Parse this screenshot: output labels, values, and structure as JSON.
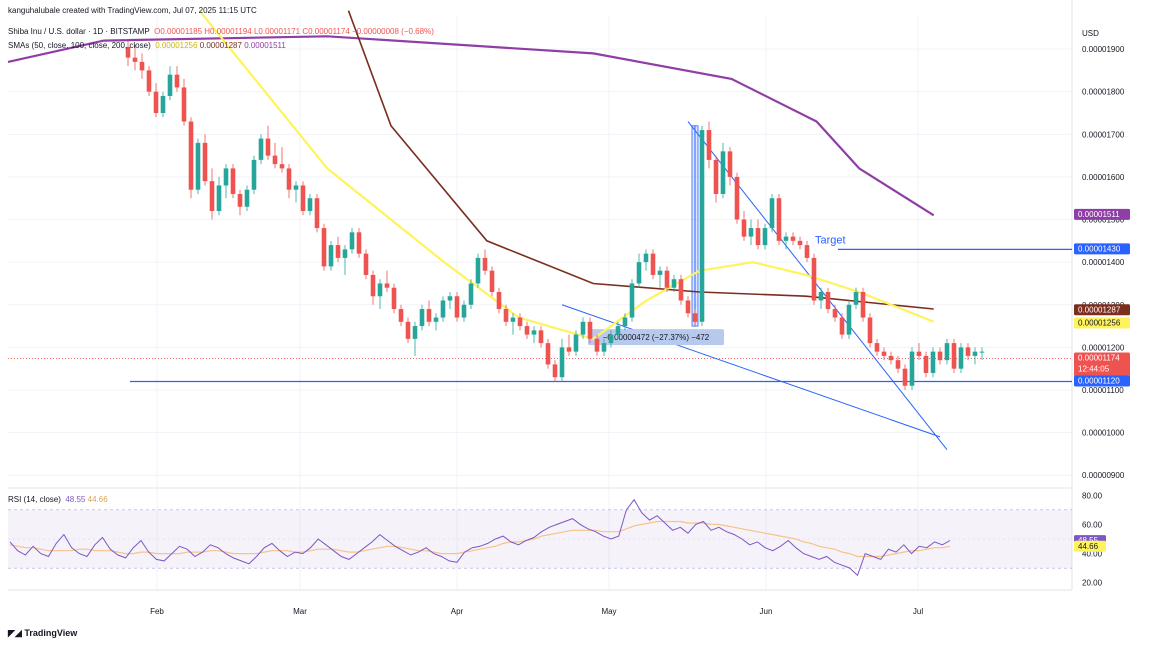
{
  "header": {
    "credit": "kanguhalubale created with TradingView.com, Jul 07, 2025 11:15 UTC",
    "symbol_line": "Shiba Inu / U.S. dollar · 1D · BITSTAMP",
    "ohlc": {
      "o": "O0.00001185",
      "h": "H0.00001194",
      "l": "L0.00001171",
      "c": "C0.00001174",
      "chg": "−0.00000008 (−0.68%)"
    },
    "sma_label": "SMAs (50, close, 100, close, 200, close)",
    "sma_values": [
      "0.00001256",
      "0.00001287",
      "0.00001511"
    ]
  },
  "currency": "USD",
  "footer": "TradingView",
  "colors": {
    "up": "#26a69a",
    "down": "#ef5350",
    "sma50": "#fff35c",
    "sma100": "#7b2d1e",
    "sma200": "#8e3ea5",
    "trendline": "#2962ff",
    "support": "#2962ff",
    "rsi": "#7e57c2",
    "rsi_ma": "#f5c48a"
  },
  "chart_data": [
    {
      "type": "candlestick",
      "title": "Shiba Inu / U.S. dollar · 1D · BITSTAMP",
      "x_ticks": [
        "Feb",
        "Mar",
        "Apr",
        "May",
        "Jun",
        "Jul"
      ],
      "y_ticks": [
        "0.00001900",
        "0.00001800",
        "0.00001700",
        "0.00001600",
        "0.00001500",
        "0.00001400",
        "0.00001300",
        "0.00001200",
        "0.00001100",
        "0.00001000",
        "0.00000900"
      ],
      "ylim": [
        8.7e-06,
        1.98e-05
      ],
      "price_scale_tags": [
        {
          "label": "0.00001511",
          "color": "#8e3ea5"
        },
        {
          "label": "0.00001430",
          "color": "#2962ff"
        },
        {
          "label": "0.00001287",
          "color": "#7b2d1e"
        },
        {
          "label": "0.00001256",
          "color": "#fff35c",
          "text": "#131722"
        },
        {
          "label": "0.00001174",
          "sub": "12:44:05",
          "color": "#ef5350"
        },
        {
          "label": "0.00001120",
          "color": "#2962ff"
        }
      ],
      "candles": [
        [
          1.905,
          1.92,
          1.86,
          1.88
        ],
        [
          1.88,
          1.91,
          1.85,
          1.87
        ],
        [
          1.87,
          1.89,
          1.83,
          1.85
        ],
        [
          1.85,
          1.86,
          1.79,
          1.8
        ],
        [
          1.8,
          1.82,
          1.74,
          1.75
        ],
        [
          1.75,
          1.8,
          1.74,
          1.79
        ],
        [
          1.79,
          1.86,
          1.78,
          1.84
        ],
        [
          1.84,
          1.86,
          1.8,
          1.81
        ],
        [
          1.81,
          1.83,
          1.72,
          1.73
        ],
        [
          1.73,
          1.74,
          1.55,
          1.57
        ],
        [
          1.57,
          1.69,
          1.56,
          1.68
        ],
        [
          1.68,
          1.7,
          1.58,
          1.59
        ],
        [
          1.59,
          1.62,
          1.5,
          1.52
        ],
        [
          1.52,
          1.6,
          1.51,
          1.58
        ],
        [
          1.58,
          1.63,
          1.55,
          1.62
        ],
        [
          1.62,
          1.63,
          1.55,
          1.56
        ],
        [
          1.56,
          1.57,
          1.51,
          1.53
        ],
        [
          1.53,
          1.58,
          1.52,
          1.57
        ],
        [
          1.57,
          1.65,
          1.56,
          1.64
        ],
        [
          1.64,
          1.7,
          1.63,
          1.69
        ],
        [
          1.69,
          1.72,
          1.64,
          1.65
        ],
        [
          1.65,
          1.68,
          1.62,
          1.63
        ],
        [
          1.63,
          1.67,
          1.61,
          1.62
        ],
        [
          1.62,
          1.63,
          1.55,
          1.57
        ],
        [
          1.57,
          1.59,
          1.54,
          1.58
        ],
        [
          1.58,
          1.59,
          1.51,
          1.52
        ],
        [
          1.52,
          1.56,
          1.51,
          1.55
        ],
        [
          1.55,
          1.56,
          1.47,
          1.48
        ],
        [
          1.48,
          1.49,
          1.38,
          1.39
        ],
        [
          1.39,
          1.45,
          1.38,
          1.44
        ],
        [
          1.44,
          1.46,
          1.4,
          1.41
        ],
        [
          1.41,
          1.44,
          1.37,
          1.43
        ],
        [
          1.43,
          1.48,
          1.42,
          1.47
        ],
        [
          1.47,
          1.48,
          1.41,
          1.42
        ],
        [
          1.42,
          1.43,
          1.36,
          1.37
        ],
        [
          1.37,
          1.38,
          1.3,
          1.32
        ],
        [
          1.32,
          1.36,
          1.29,
          1.35
        ],
        [
          1.35,
          1.38,
          1.33,
          1.34
        ],
        [
          1.34,
          1.35,
          1.28,
          1.29
        ],
        [
          1.29,
          1.3,
          1.25,
          1.26
        ],
        [
          1.26,
          1.27,
          1.21,
          1.22
        ],
        [
          1.22,
          1.26,
          1.18,
          1.25
        ],
        [
          1.25,
          1.3,
          1.24,
          1.29
        ],
        [
          1.29,
          1.31,
          1.25,
          1.26
        ],
        [
          1.26,
          1.28,
          1.24,
          1.27
        ],
        [
          1.27,
          1.32,
          1.26,
          1.31
        ],
        [
          1.31,
          1.33,
          1.29,
          1.32
        ],
        [
          1.32,
          1.33,
          1.26,
          1.27
        ],
        [
          1.27,
          1.31,
          1.26,
          1.3
        ],
        [
          1.3,
          1.36,
          1.29,
          1.35
        ],
        [
          1.35,
          1.42,
          1.34,
          1.41
        ],
        [
          1.41,
          1.43,
          1.37,
          1.38
        ],
        [
          1.38,
          1.39,
          1.32,
          1.33
        ],
        [
          1.33,
          1.34,
          1.28,
          1.29
        ],
        [
          1.29,
          1.3,
          1.25,
          1.26
        ],
        [
          1.26,
          1.28,
          1.23,
          1.27
        ],
        [
          1.27,
          1.28,
          1.24,
          1.25
        ],
        [
          1.25,
          1.26,
          1.22,
          1.23
        ],
        [
          1.23,
          1.25,
          1.21,
          1.24
        ],
        [
          1.24,
          1.25,
          1.2,
          1.21
        ],
        [
          1.21,
          1.22,
          1.15,
          1.16
        ],
        [
          1.16,
          1.17,
          1.12,
          1.13
        ],
        [
          1.13,
          1.22,
          1.12,
          1.2
        ],
        [
          1.2,
          1.23,
          1.18,
          1.19
        ],
        [
          1.19,
          1.24,
          1.18,
          1.23
        ],
        [
          1.23,
          1.27,
          1.22,
          1.26
        ],
        [
          1.26,
          1.27,
          1.21,
          1.22
        ],
        [
          1.22,
          1.23,
          1.18,
          1.19
        ],
        [
          1.19,
          1.22,
          1.18,
          1.21
        ],
        [
          1.21,
          1.24,
          1.2,
          1.23
        ],
        [
          1.23,
          1.26,
          1.22,
          1.25
        ],
        [
          1.25,
          1.28,
          1.24,
          1.27
        ],
        [
          1.27,
          1.36,
          1.26,
          1.35
        ],
        [
          1.35,
          1.42,
          1.34,
          1.4
        ],
        [
          1.4,
          1.43,
          1.38,
          1.42
        ],
        [
          1.42,
          1.43,
          1.36,
          1.37
        ],
        [
          1.37,
          1.39,
          1.34,
          1.38
        ],
        [
          1.38,
          1.39,
          1.33,
          1.34
        ],
        [
          1.34,
          1.37,
          1.33,
          1.36
        ],
        [
          1.36,
          1.37,
          1.3,
          1.31
        ],
        [
          1.31,
          1.32,
          1.27,
          1.28
        ],
        [
          1.28,
          1.29,
          1.25,
          1.26
        ],
        [
          1.26,
          1.72,
          1.25,
          1.71
        ],
        [
          1.71,
          1.73,
          1.62,
          1.64
        ],
        [
          1.64,
          1.65,
          1.54,
          1.56
        ],
        [
          1.56,
          1.68,
          1.55,
          1.66
        ],
        [
          1.66,
          1.67,
          1.58,
          1.6
        ],
        [
          1.6,
          1.61,
          1.49,
          1.5
        ],
        [
          1.5,
          1.52,
          1.45,
          1.46
        ],
        [
          1.46,
          1.5,
          1.44,
          1.48
        ],
        [
          1.48,
          1.5,
          1.43,
          1.44
        ],
        [
          1.44,
          1.49,
          1.43,
          1.48
        ],
        [
          1.48,
          1.56,
          1.47,
          1.55
        ],
        [
          1.55,
          1.56,
          1.44,
          1.45
        ],
        [
          1.45,
          1.47,
          1.43,
          1.46
        ],
        [
          1.46,
          1.47,
          1.44,
          1.45
        ],
        [
          1.45,
          1.46,
          1.43,
          1.44
        ],
        [
          1.44,
          1.45,
          1.4,
          1.41
        ],
        [
          1.41,
          1.42,
          1.3,
          1.31
        ],
        [
          1.31,
          1.34,
          1.29,
          1.33
        ],
        [
          1.33,
          1.34,
          1.28,
          1.29
        ],
        [
          1.29,
          1.3,
          1.26,
          1.27
        ],
        [
          1.27,
          1.28,
          1.22,
          1.23
        ],
        [
          1.23,
          1.31,
          1.22,
          1.3
        ],
        [
          1.3,
          1.34,
          1.29,
          1.33
        ],
        [
          1.33,
          1.34,
          1.26,
          1.27
        ],
        [
          1.27,
          1.28,
          1.2,
          1.21
        ],
        [
          1.21,
          1.22,
          1.18,
          1.19
        ],
        [
          1.19,
          1.2,
          1.17,
          1.18
        ],
        [
          1.18,
          1.19,
          1.16,
          1.17
        ],
        [
          1.17,
          1.18,
          1.14,
          1.15
        ],
        [
          1.15,
          1.16,
          1.1,
          1.11
        ],
        [
          1.11,
          1.2,
          1.1,
          1.19
        ],
        [
          1.19,
          1.21,
          1.17,
          1.18
        ],
        [
          1.18,
          1.19,
          1.13,
          1.14
        ],
        [
          1.14,
          1.2,
          1.13,
          1.19
        ],
        [
          1.19,
          1.2,
          1.16,
          1.17
        ],
        [
          1.17,
          1.22,
          1.16,
          1.21
        ],
        [
          1.21,
          1.22,
          1.14,
          1.15
        ],
        [
          1.15,
          1.21,
          1.14,
          1.2
        ],
        [
          1.2,
          1.21,
          1.17,
          1.18
        ],
        [
          1.18,
          1.2,
          1.16,
          1.19
        ],
        [
          1.19,
          1.2,
          1.17,
          1.19
        ]
      ],
      "sma50": [
        [
          0.18,
          1.99
        ],
        [
          0.3,
          1.62
        ],
        [
          0.41,
          1.4
        ],
        [
          0.48,
          1.27
        ],
        [
          0.55,
          1.22
        ],
        [
          0.6,
          1.31
        ],
        [
          0.65,
          1.38
        ],
        [
          0.7,
          1.4
        ],
        [
          0.75,
          1.37
        ],
        [
          0.8,
          1.33
        ],
        [
          0.84,
          1.29
        ],
        [
          0.87,
          1.26
        ]
      ],
      "sma100": [
        [
          0.32,
          1.99
        ],
        [
          0.36,
          1.72
        ],
        [
          0.45,
          1.45
        ],
        [
          0.55,
          1.35
        ],
        [
          0.65,
          1.33
        ],
        [
          0.75,
          1.32
        ],
        [
          0.87,
          1.29
        ]
      ],
      "sma200": [
        [
          0.0,
          1.87
        ],
        [
          0.09,
          1.92
        ],
        [
          0.3,
          1.93
        ],
        [
          0.55,
          1.89
        ],
        [
          0.68,
          1.83
        ],
        [
          0.76,
          1.73
        ],
        [
          0.8,
          1.62
        ],
        [
          0.87,
          1.51
        ]
      ],
      "annotations": {
        "target_label": "Target",
        "target_price": 1.43,
        "support_price": 1.12,
        "measure_label": "−0.00000472 (−27.37%) −472"
      }
    },
    {
      "type": "line",
      "title": "RSI (14, close)",
      "rsi_value": "48.55",
      "rsi_ma_value": "44.66",
      "y_ticks": [
        "80.00",
        "60.00",
        "40.00",
        "20.00"
      ],
      "ylim": [
        15,
        85
      ],
      "band": [
        30,
        70
      ],
      "rsi": [
        48,
        42,
        39,
        45,
        40,
        38,
        47,
        53,
        44,
        40,
        38,
        46,
        51,
        43,
        39,
        37,
        44,
        49,
        41,
        36,
        35,
        40,
        45,
        43,
        38,
        41,
        46,
        44,
        40,
        37,
        35,
        33,
        38,
        44,
        47,
        42,
        38,
        41,
        40,
        44,
        50,
        46,
        42,
        38,
        36,
        40,
        44,
        48,
        53,
        49,
        45,
        42,
        39,
        41,
        44,
        40,
        38,
        35,
        34,
        41,
        44,
        45,
        47,
        50,
        52,
        48,
        46,
        49,
        51,
        55,
        58,
        60,
        62,
        64,
        60,
        57,
        55,
        52,
        50,
        52,
        70,
        77,
        68,
        63,
        66,
        61,
        56,
        58,
        54,
        60,
        62,
        56,
        58,
        55,
        53,
        50,
        46,
        48,
        44,
        42,
        45,
        49,
        44,
        40,
        38,
        36,
        38,
        34,
        32,
        30,
        25,
        40,
        38,
        36,
        43,
        41,
        46,
        40,
        45,
        44,
        48,
        46,
        49
      ],
      "rsi_ma": [
        46,
        45,
        44,
        44,
        43,
        42,
        42,
        42,
        42,
        43,
        43,
        42,
        42,
        42,
        41,
        40,
        40,
        41,
        41,
        40,
        40,
        40,
        40,
        41,
        41,
        41,
        42,
        42,
        41,
        40,
        40,
        40,
        40,
        41,
        42,
        42,
        42,
        41,
        41,
        42,
        43,
        43,
        43,
        42,
        41,
        41,
        42,
        43,
        44,
        45,
        45,
        44,
        43,
        42,
        42,
        41,
        40,
        40,
        40,
        41,
        42,
        43,
        44,
        45,
        47,
        48,
        48,
        49,
        50,
        52,
        53,
        54,
        55,
        56,
        56,
        56,
        56,
        55,
        55,
        55,
        57,
        59,
        60,
        61,
        62,
        62,
        62,
        62,
        61,
        61,
        61,
        60,
        60,
        59,
        58,
        57,
        56,
        55,
        54,
        53,
        52,
        51,
        50,
        48,
        47,
        45,
        44,
        43,
        41,
        40,
        38,
        38,
        38,
        38,
        39,
        40,
        41,
        42,
        42,
        43,
        44,
        44,
        45
      ]
    }
  ]
}
